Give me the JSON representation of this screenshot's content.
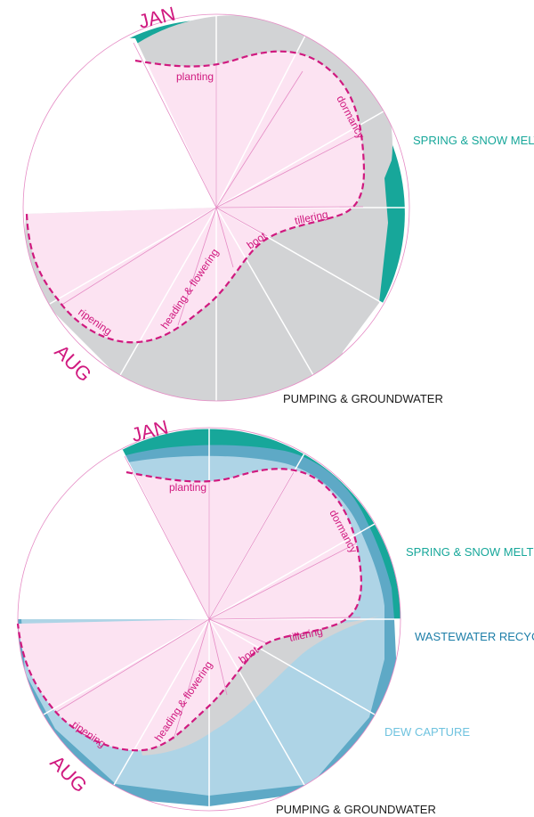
{
  "colors": {
    "teal": "#17a79a",
    "grey": "#d2d3d5",
    "pink_fill": "#fce3f2",
    "magenta": "#d0197f",
    "pink_line": "#e58ac4",
    "blue_light": "#aed4e6",
    "blue_mid": "#5ea9c6",
    "blue_text": "#1d7ea8",
    "dew_text": "#6fc3df",
    "dark_text": "#1a1a1a"
  },
  "diagram_top": {
    "month_start": "JAN",
    "month_end": "AUG",
    "stages": {
      "planting": "planting",
      "dormancy": "dormancy",
      "tillering": "tillering",
      "boot": "boot",
      "heading": "heading & flowering",
      "ripening": "ripening"
    },
    "sources": {
      "spring": "SPRING & SNOW MELT",
      "pumping": "PUMPING & GROUNDWATER"
    }
  },
  "diagram_bottom": {
    "month_start": "JAN",
    "month_end": "AUG",
    "stages": {
      "planting": "planting",
      "dormancy": "dormancy",
      "tillering": "tillering",
      "boot": "boot",
      "heading": "heading & flowering",
      "ripening": "ripening"
    },
    "sources": {
      "spring": "SPRING & SNOW MELT",
      "wastewater": "WASTEWATER RECYCLE",
      "dew": "DEW CAPTURE",
      "pumping": "PUMPING & GROUNDWATER"
    }
  }
}
